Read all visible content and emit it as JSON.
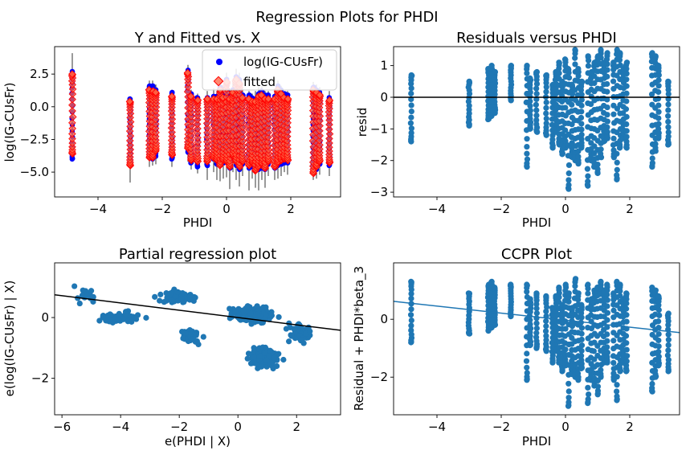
{
  "figure": {
    "suptitle": "Regression Plots for PHDI"
  },
  "colors": {
    "blue_points": "#0000ff",
    "fitted_fill": "#ff6040",
    "fitted_edge": "#ff0000",
    "errorbar": "#000000",
    "scatter": "#1f77b4",
    "zero_line": "#000000",
    "fit_line_black": "#000000",
    "fit_line_blue": "#1f77b4"
  },
  "chart_data": [
    {
      "id": "yfit",
      "type": "scatter",
      "title": "Y and Fitted vs. X",
      "xlabel": "PHDI",
      "ylabel": "log(IG-CUsFr)",
      "xlim": [
        -5.35,
        3.55
      ],
      "ylim": [
        -6.9,
        4.6
      ],
      "xticks": [
        -4,
        -2,
        0,
        2
      ],
      "yticks": [
        -5.0,
        -2.5,
        0.0,
        2.5
      ],
      "ytick_labels": [
        "−5.0",
        "−2.5",
        "0.0",
        "2.5"
      ],
      "legend": {
        "position": "top-right",
        "entries": [
          "log(IG-CUsFr)",
          "fitted"
        ]
      },
      "x_values": [
        -4.8,
        -3.0,
        -2.4,
        -2.3,
        -2.2,
        -1.7,
        -1.2,
        -1.1,
        -0.9,
        -0.6,
        -0.4,
        -0.3,
        -0.2,
        -0.1,
        0.0,
        0.1,
        0.2,
        0.3,
        0.4,
        0.5,
        0.7,
        0.8,
        0.9,
        1.0,
        1.1,
        1.2,
        1.3,
        1.5,
        1.6,
        1.7,
        1.8,
        1.9,
        2.7,
        2.8,
        2.9,
        3.2
      ],
      "series": [
        {
          "name": "log(IG-CUsFr)",
          "low": [
            -4.0,
            -4.2,
            -3.9,
            -4.0,
            -3.8,
            -4.0,
            -3.5,
            -4.3,
            -4.6,
            -4.5,
            -4.0,
            -4.4,
            -4.5,
            -4.3,
            -4.2,
            -4.7,
            -4.0,
            -4.5,
            -4.8,
            -4.4,
            -4.7,
            -4.6,
            -4.9,
            -4.8,
            -4.7,
            -4.8,
            -4.4,
            -4.7,
            -4.5,
            -4.4,
            -4.3,
            -4.3,
            -4.7,
            -4.8,
            -4.4,
            -4.5
          ],
          "high": [
            2.7,
            0.6,
            1.6,
            1.6,
            1.3,
            1.1,
            2.8,
            1.0,
            0.7,
            0.7,
            0.8,
            0.8,
            1.5,
            0.9,
            2.1,
            0.8,
            1.3,
            2.3,
            2.1,
            0.9,
            0.9,
            0.7,
            0.6,
            1.0,
            1.2,
            0.9,
            0.9,
            0.8,
            1.6,
            1.3,
            1.0,
            0.9,
            1.5,
            1.3,
            1.1,
            0.7
          ]
        },
        {
          "name": "fitted",
          "low": [
            -3.6,
            -4.5,
            -3.9,
            -3.9,
            -3.4,
            -3.7,
            -3.2,
            -4.1,
            -4.2,
            -4.2,
            -3.9,
            -4.1,
            -4.5,
            -4.1,
            -4.2,
            -4.6,
            -3.8,
            -4.2,
            -4.6,
            -4.2,
            -4.5,
            -4.3,
            -4.9,
            -4.6,
            -4.4,
            -4.7,
            -4.2,
            -4.6,
            -4.3,
            -4.1,
            -4.0,
            -4.1,
            -5.1,
            -4.6,
            -4.2,
            -4.3
          ],
          "high": [
            2.5,
            0.4,
            1.3,
            1.2,
            1.1,
            0.8,
            2.6,
            0.8,
            0.5,
            0.6,
            0.6,
            0.6,
            1.3,
            0.7,
            1.9,
            0.6,
            1.1,
            2.1,
            1.8,
            0.7,
            0.6,
            0.4,
            0.4,
            0.8,
            0.9,
            0.6,
            0.6,
            0.6,
            1.3,
            1.0,
            0.7,
            0.6,
            1.3,
            1.1,
            0.9,
            0.5
          ]
        }
      ],
      "errorbars": {
        "low": [
          -4.2,
          -5.8,
          -4.6,
          -4.5,
          -4.4,
          -4.6,
          -4.2,
          -4.8,
          -5.1,
          -5.6,
          -5.0,
          -5.6,
          -5.7,
          -5.5,
          -5.4,
          -6.3,
          -5.0,
          -5.6,
          -6.1,
          -5.3,
          -6.4,
          -5.5,
          -6.2,
          -6.4,
          -5.6,
          -6.2,
          -5.3,
          -5.6,
          -5.5,
          -5.3,
          -5.0,
          -5.2,
          -5.6,
          -5.5,
          -5.2,
          -5.3
        ],
        "high": [
          4.1,
          0.8,
          2.0,
          2.0,
          1.7,
          1.3,
          3.2,
          1.3,
          1.0,
          1.2,
          1.4,
          1.2,
          2.0,
          1.5,
          2.6,
          1.4,
          1.9,
          2.9,
          2.6,
          1.4,
          1.2,
          1.0,
          1.2,
          1.5,
          1.6,
          1.2,
          1.2,
          1.2,
          2.0,
          1.6,
          1.2,
          1.2,
          1.9,
          1.7,
          1.5,
          1.2
        ]
      }
    },
    {
      "id": "resid",
      "type": "scatter",
      "title": "Residuals versus PHDI",
      "xlabel": "PHDI",
      "ylabel": "resid",
      "xlim": [
        -5.35,
        3.55
      ],
      "ylim": [
        -3.15,
        1.6
      ],
      "xticks": [
        -4,
        -2,
        0,
        2
      ],
      "yticks": [
        -3,
        -2,
        -1,
        0,
        1
      ],
      "ytick_labels": [
        "−3",
        "−2",
        "−1",
        "0",
        "1"
      ],
      "zero_line": 0,
      "x_values": [
        -4.8,
        -3.0,
        -2.4,
        -2.3,
        -2.2,
        -1.7,
        -1.2,
        -1.1,
        -0.9,
        -0.6,
        -0.4,
        -0.3,
        -0.2,
        -0.1,
        0.0,
        0.1,
        0.2,
        0.3,
        0.4,
        0.5,
        0.7,
        0.8,
        0.9,
        1.0,
        1.1,
        1.2,
        1.3,
        1.5,
        1.6,
        1.7,
        1.8,
        1.9,
        2.7,
        2.8,
        2.9,
        3.2
      ],
      "low": [
        -1.4,
        -0.9,
        -0.7,
        -0.6,
        -0.5,
        -0.1,
        -2.2,
        -1.0,
        -1.1,
        -1.2,
        -1.6,
        -1.1,
        -1.5,
        -1.8,
        -1.6,
        -2.9,
        -1.9,
        -2.0,
        -2.1,
        -1.6,
        -2.8,
        -2.0,
        -2.2,
        -2.4,
        -1.9,
        -1.4,
        -1.3,
        -1.9,
        -2.6,
        -1.6,
        -1.3,
        -1.6,
        -2.2,
        -1.7,
        -1.3,
        -1.5
      ],
      "high": [
        0.7,
        0.5,
        0.9,
        1.0,
        0.8,
        1.0,
        1.0,
        0.6,
        0.8,
        0.7,
        0.4,
        0.8,
        1.1,
        0.5,
        1.2,
        0.9,
        0.4,
        1.5,
        0.9,
        0.5,
        1.3,
        0.8,
        1.1,
        1.3,
        1.5,
        1.1,
        1.4,
        1.1,
        1.5,
        1.4,
        0.9,
        1.1,
        1.4,
        1.3,
        1.0,
        0.5
      ]
    },
    {
      "id": "partreg",
      "type": "scatter",
      "title": "Partial regression plot",
      "xlabel": "e(PHDI | X)",
      "ylabel": "e(log(IG-CUsFr) | X)",
      "xlim": [
        -6.25,
        3.5
      ],
      "ylim": [
        -3.2,
        1.8
      ],
      "xticks": [
        -6,
        -4,
        -2,
        0,
        2
      ],
      "xtick_labels": [
        "−6",
        "−4",
        "−2",
        "0",
        "2"
      ],
      "yticks": [
        -2,
        0
      ],
      "ytick_labels": [
        "−2",
        "0"
      ],
      "fit_line": {
        "x": [
          -6.25,
          3.5
        ],
        "y": [
          0.75,
          -0.42
        ]
      },
      "clusters": [
        {
          "x_mean": -4.0,
          "x_spread": 1.6,
          "y_mean": 0.0,
          "y_spread": 0.4,
          "count": 60
        },
        {
          "x_mean": -2.0,
          "x_spread": 1.2,
          "y_mean": 0.7,
          "y_spread": 0.4,
          "count": 70
        },
        {
          "x_mean": 0.5,
          "x_spread": 1.4,
          "y_mean": 0.1,
          "y_spread": 0.5,
          "count": 240
        },
        {
          "x_mean": 0.9,
          "x_spread": 1.1,
          "y_mean": -1.3,
          "y_spread": 0.6,
          "count": 140
        },
        {
          "x_mean": -1.6,
          "x_spread": 0.7,
          "y_mean": -0.6,
          "y_spread": 0.4,
          "count": 40
        },
        {
          "x_mean": 2.1,
          "x_spread": 0.8,
          "y_mean": -0.5,
          "y_spread": 0.6,
          "count": 60
        },
        {
          "x_mean": -5.2,
          "x_spread": 0.6,
          "y_mean": 0.7,
          "y_spread": 0.5,
          "count": 20
        }
      ]
    },
    {
      "id": "ccpr",
      "type": "scatter",
      "title": "CCPR Plot",
      "xlabel": "PHDI",
      "ylabel": "Residual + PHDI*beta_3",
      "xlim": [
        -5.35,
        3.55
      ],
      "ylim": [
        -3.3,
        1.95
      ],
      "xticks": [
        -4,
        -2,
        0,
        2
      ],
      "yticks": [
        -2,
        0
      ],
      "ytick_labels": [
        "−2",
        "0"
      ],
      "fit_line": {
        "x": [
          -5.35,
          3.55
        ],
        "y": [
          0.62,
          -0.46
        ]
      },
      "x_values": [
        -4.8,
        -3.0,
        -2.4,
        -2.3,
        -2.2,
        -1.7,
        -1.2,
        -1.1,
        -0.9,
        -0.6,
        -0.4,
        -0.3,
        -0.2,
        -0.1,
        0.0,
        0.1,
        0.2,
        0.3,
        0.4,
        0.5,
        0.7,
        0.8,
        0.9,
        1.0,
        1.1,
        1.2,
        1.3,
        1.5,
        1.6,
        1.7,
        1.8,
        1.9,
        2.7,
        2.8,
        2.9,
        3.2
      ],
      "low": [
        -0.8,
        -0.5,
        -0.4,
        -0.3,
        -0.2,
        0.1,
        -2.1,
        -0.9,
        -1.0,
        -1.1,
        -1.5,
        -1.1,
        -1.5,
        -1.8,
        -1.6,
        -3.0,
        -1.9,
        -2.0,
        -2.1,
        -1.7,
        -2.9,
        -2.1,
        -2.3,
        -2.6,
        -2.0,
        -1.5,
        -1.5,
        -2.1,
        -2.8,
        -1.8,
        -1.5,
        -1.8,
        -2.5,
        -2.0,
        -1.6,
        -1.8
      ],
      "high": [
        1.3,
        0.9,
        1.2,
        1.3,
        1.1,
        1.2,
        1.2,
        0.7,
        0.9,
        0.8,
        0.4,
        0.8,
        1.1,
        0.5,
        1.2,
        0.9,
        0.4,
        1.4,
        0.9,
        0.5,
        1.2,
        0.7,
        1.0,
        1.1,
        1.3,
        1.0,
        1.2,
        0.9,
        1.3,
        1.2,
        0.7,
        0.9,
        1.1,
        1.0,
        0.8,
        0.2
      ]
    }
  ]
}
